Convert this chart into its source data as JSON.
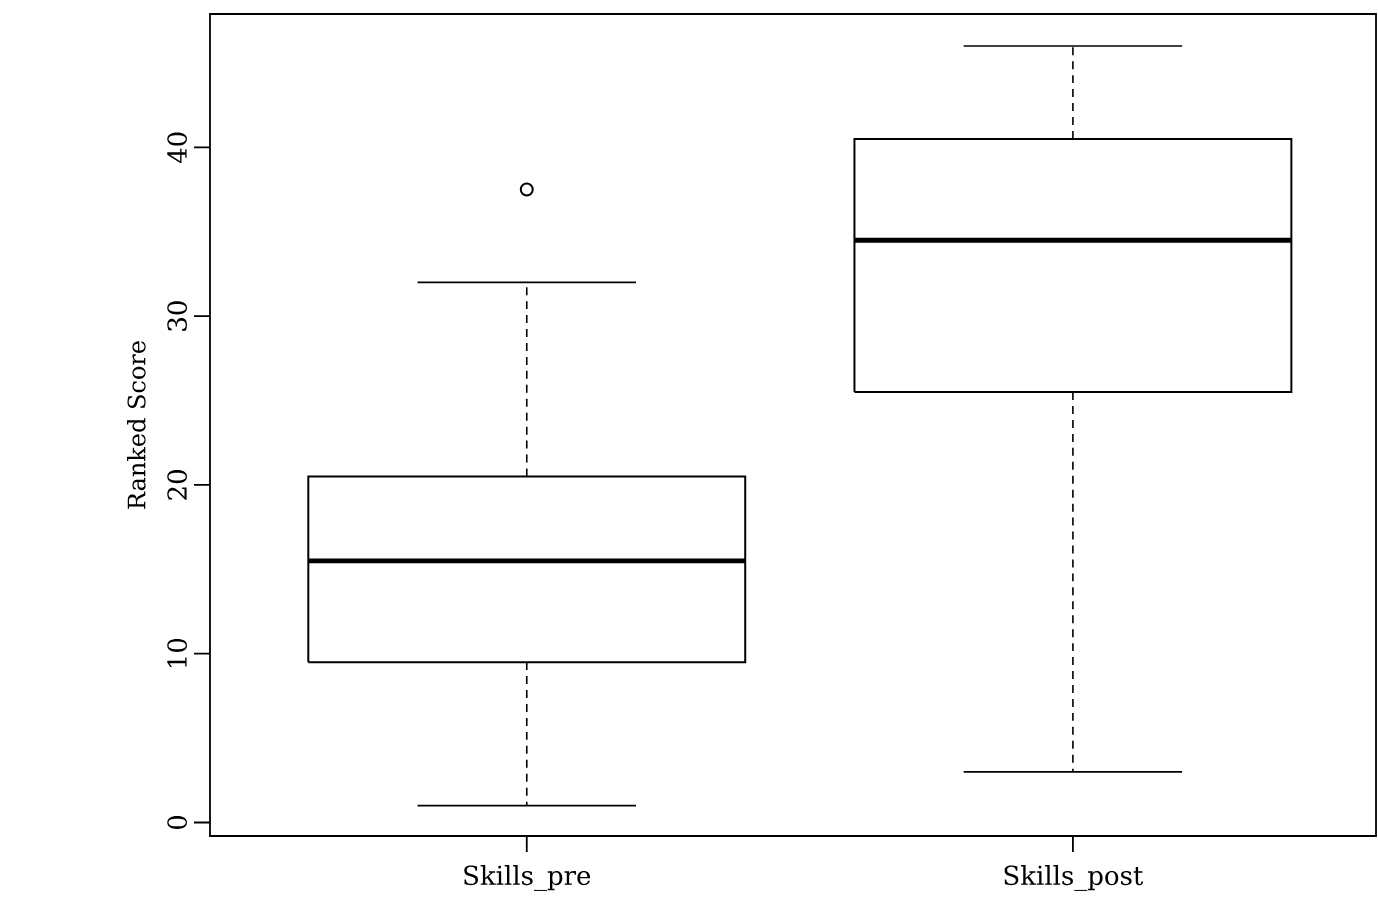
{
  "chart_data": {
    "type": "box",
    "ylabel": "Ranked Score",
    "categories": [
      "Skills_pre",
      "Skills_post"
    ],
    "boxes": [
      {
        "low": 1,
        "q1": 9.5,
        "median": 15.5,
        "q3": 20.5,
        "high": 32,
        "outliers": [
          37.5
        ]
      },
      {
        "low": 3,
        "q1": 25.5,
        "median": 34.5,
        "q3": 40.5,
        "high": 46
      }
    ],
    "ylim": [
      -0.8,
      47.9
    ],
    "yticks": [
      0,
      10,
      20,
      30,
      40
    ]
  }
}
